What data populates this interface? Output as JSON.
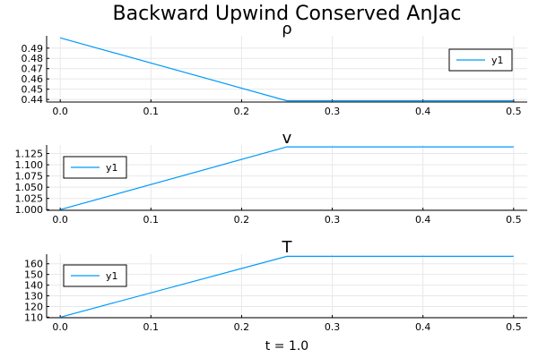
{
  "chart_data": {
    "type": "line",
    "title": "Backward Upwind Conserved AnJac",
    "xlabel": "t = 1.0",
    "series_color": "#009AFA",
    "subplots": [
      {
        "title": "ρ",
        "xlim": [
          -0.015,
          0.515
        ],
        "ylim": [
          0.4375,
          0.502
        ],
        "xticks": [
          0.0,
          0.1,
          0.2,
          0.3,
          0.4,
          0.5
        ],
        "xtick_labels": [
          "0.0",
          "0.1",
          "0.2",
          "0.3",
          "0.4",
          "0.5"
        ],
        "yticks": [
          0.44,
          0.45,
          0.46,
          0.47,
          0.48,
          0.49
        ],
        "ytick_labels": [
          "0.44",
          "0.45",
          "0.46",
          "0.47",
          "0.48",
          "0.49"
        ],
        "legend_position": "top-right",
        "series": [
          {
            "name": "y1",
            "x": [
              0.0,
              0.25,
              0.5
            ],
            "y": [
              0.5,
              0.4387,
              0.4387
            ]
          }
        ]
      },
      {
        "title": "v",
        "xlim": [
          -0.015,
          0.515
        ],
        "ylim": [
          0.9985,
          1.144
        ],
        "xticks": [
          0.0,
          0.1,
          0.2,
          0.3,
          0.4,
          0.5
        ],
        "xtick_labels": [
          "0.0",
          "0.1",
          "0.2",
          "0.3",
          "0.4",
          "0.5"
        ],
        "yticks": [
          1.0,
          1.025,
          1.05,
          1.075,
          1.1,
          1.125
        ],
        "ytick_labels": [
          "1.000",
          "1.025",
          "1.050",
          "1.075",
          "1.100",
          "1.125"
        ],
        "legend_position": "top-left",
        "series": [
          {
            "name": "y1",
            "x": [
              0.0,
              0.25,
              0.5
            ],
            "y": [
              1.0,
              1.1398,
              1.1398
            ]
          }
        ]
      },
      {
        "title": "T",
        "xlim": [
          -0.015,
          0.515
        ],
        "ylim": [
          109.5,
          169.0
        ],
        "xticks": [
          0.0,
          0.1,
          0.2,
          0.3,
          0.4,
          0.5
        ],
        "xtick_labels": [
          "0.0",
          "0.1",
          "0.2",
          "0.3",
          "0.4",
          "0.5"
        ],
        "yticks": [
          110,
          120,
          130,
          140,
          150,
          160
        ],
        "ytick_labels": [
          "110",
          "120",
          "130",
          "140",
          "150",
          "160"
        ],
        "legend_position": "top-left",
        "series": [
          {
            "name": "y1",
            "x": [
              0.0,
              0.25,
              0.5
            ],
            "y": [
              110.0,
              167.0,
              167.0
            ]
          }
        ]
      }
    ]
  }
}
